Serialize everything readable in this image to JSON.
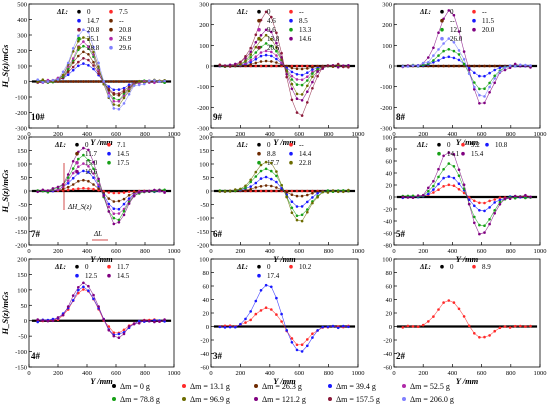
{
  "figure": {
    "ylabel": "H_S(z)/mGs",
    "xlabel": "Y /mm",
    "legend_title": "ΔL:",
    "dash_label": "--",
    "annotations": {
      "dh": "ΔH_S(z)",
      "dl": "ΔL"
    }
  },
  "colors": {
    "0": "#000000",
    "13.1": "#ff2a2a",
    "26.3": "#6e2a00",
    "39.4": "#1919ff",
    "52.5": "#b02aa8",
    "78.8": "#16a016",
    "96.9": "#6c6c00",
    "121.2": "#800080",
    "157.5": "#8b1a3a",
    "206.0": "#8080ff"
  },
  "mass_legend": {
    "row1": [
      {
        "label": "Δm = 0 g",
        "key": "0"
      },
      {
        "label": "Δm = 13.1 g",
        "key": "13.1"
      },
      {
        "label": "Δm = 26.3 g",
        "key": "26.3"
      },
      {
        "label": "Δm = 39.4 g",
        "key": "39.4"
      },
      {
        "label": "Δm = 52.5 g",
        "key": "52.5"
      }
    ],
    "row2": [
      {
        "label": "Δm = 78.8 g",
        "key": "78.8"
      },
      {
        "label": "Δm = 96.9 g",
        "key": "96.9"
      },
      {
        "label": "Δm = 121.2 g",
        "key": "121.2"
      },
      {
        "label": "Δm = 157.5 g",
        "key": "157.5"
      },
      {
        "label": "Δm = 206.0 g",
        "key": "206.0"
      }
    ]
  },
  "chart_data": [
    {
      "type": "line",
      "id": "10#",
      "ylim": [
        -300,
        500
      ],
      "yticks": [
        -300,
        -200,
        -100,
        0,
        100,
        200,
        300,
        400,
        500
      ],
      "xlim": [
        0,
        1000
      ],
      "xticks": [
        0,
        200,
        400,
        600,
        800,
        1000
      ],
      "legend_cols": 2,
      "series": [
        {
          "name": "0",
          "key": "0",
          "peak": 0,
          "trough": 0
        },
        {
          "name": "7.5",
          "key": "13.1",
          "dashed": true,
          "peak": 0,
          "trough": 0
        },
        {
          "name": "14.7",
          "key": "39.4",
          "peak": 115,
          "trough": -60
        },
        {
          "name": "--",
          "key": "26.3",
          "dashed": true,
          "peak": 0,
          "trough": 0
        },
        {
          "name": "20.8",
          "key": "157.5",
          "peak": 150,
          "trough": -80
        },
        {
          "name": "20.8",
          "key": "26.3",
          "peak": 185,
          "trough": -95
        },
        {
          "name": "25.1",
          "key": "78.8",
          "peak": 230,
          "trough": -125
        },
        {
          "name": "26.9",
          "key": "52.5",
          "peak": 250,
          "trough": -140
        },
        {
          "name": "28.8",
          "key": "96.9",
          "peak": 295,
          "trough": -165
        },
        {
          "name": "29.6",
          "key": "206.0",
          "peak": 340,
          "trough": -185
        }
      ]
    },
    {
      "type": "line",
      "id": "9#",
      "ylim": [
        -300,
        300
      ],
      "yticks": [
        -300,
        -200,
        -100,
        0,
        100,
        200,
        300
      ],
      "xlim": [
        0,
        1000
      ],
      "xticks": [
        0,
        200,
        400,
        600,
        800,
        1000
      ],
      "legend_cols": 2,
      "series": [
        {
          "name": "0",
          "key": "0",
          "peak": 0,
          "trough": 0
        },
        {
          "name": "--",
          "key": "13.1",
          "dashed": true,
          "peak": 0,
          "trough": 0
        },
        {
          "name": "4.6",
          "key": "26.3",
          "peak": 25,
          "trough": -15
        },
        {
          "name": "8.5",
          "key": "39.4",
          "peak": 55,
          "trough": -45
        },
        {
          "name": "9.6",
          "key": "52.5",
          "peak": 75,
          "trough": -70
        },
        {
          "name": "13.3",
          "key": "78.8",
          "peak": 110,
          "trough": -100
        },
        {
          "name": "13.8",
          "key": "96.9",
          "peak": 145,
          "trough": -140
        },
        {
          "name": "14.6",
          "key": "121.2",
          "peak": 175,
          "trough": -175
        },
        {
          "name": "20.6",
          "key": "157.5",
          "peak": 255,
          "trough": -245
        }
      ]
    },
    {
      "type": "line",
      "id": "8#",
      "ylim": [
        -300,
        300
      ],
      "yticks": [
        -300,
        -200,
        -100,
        0,
        100,
        200,
        300
      ],
      "xlim": [
        0,
        1000
      ],
      "xticks": [
        0,
        200,
        400,
        600,
        800,
        1000
      ],
      "legend_cols": 2,
      "series": [
        {
          "name": "0",
          "key": "0",
          "peak": 0,
          "trough": 0
        },
        {
          "name": "--",
          "key": "13.1",
          "dashed": true,
          "peak": 0,
          "trough": 0
        },
        {
          "name": "--",
          "key": "26.3",
          "dashed": true,
          "peak": 0,
          "trough": 0
        },
        {
          "name": "11.5",
          "key": "39.4",
          "peak": 45,
          "trough": -50
        },
        {
          "name": "12.1",
          "key": "78.8",
          "peak": 85,
          "trough": -120
        },
        {
          "name": "20.0",
          "key": "121.2",
          "peak": 265,
          "trough": -190
        },
        {
          "name": "26.0",
          "key": "206.0",
          "peak": 130,
          "trough": -150
        }
      ]
    },
    {
      "type": "line",
      "id": "7#",
      "ylim": [
        -200,
        200
      ],
      "yticks": [
        -200,
        -150,
        -100,
        -50,
        0,
        50,
        100,
        150,
        200
      ],
      "xlim": [
        0,
        1000
      ],
      "xticks": [
        0,
        200,
        400,
        600,
        800,
        1000
      ],
      "legend_cols": 2,
      "series": [
        {
          "name": "0",
          "key": "0",
          "peak": 0,
          "trough": 0
        },
        {
          "name": "7.1",
          "key": "13.1",
          "peak": 10,
          "trough": -8
        },
        {
          "name": "11.7",
          "key": "26.3",
          "peak": 40,
          "trough": -40
        },
        {
          "name": "14.5",
          "key": "39.4",
          "peak": 75,
          "trough": -70
        },
        {
          "name": "15.0",
          "key": "52.5",
          "peak": 100,
          "trough": -90
        },
        {
          "name": "17.5",
          "key": "78.8",
          "peak": 130,
          "trough": -110
        },
        {
          "name": "19.6",
          "key": "121.2",
          "peak": 165,
          "trough": -125
        }
      ]
    },
    {
      "type": "line",
      "id": "6#",
      "ylim": [
        -200,
        200
      ],
      "yticks": [
        -200,
        -150,
        -100,
        -50,
        0,
        50,
        100,
        150,
        200
      ],
      "xlim": [
        0,
        1000
      ],
      "xticks": [
        0,
        200,
        400,
        600,
        800,
        1000
      ],
      "legend_cols": 2,
      "series": [
        {
          "name": "0",
          "key": "0",
          "peak": 0,
          "trough": 0
        },
        {
          "name": "--",
          "key": "13.1",
          "dashed": true,
          "peak": 0,
          "trough": 0
        },
        {
          "name": "8.8",
          "key": "26.3",
          "peak": 20,
          "trough": -20
        },
        {
          "name": "14.4",
          "key": "39.4",
          "peak": 50,
          "trough": -60
        },
        {
          "name": "17.7",
          "key": "78.8",
          "peak": 85,
          "trough": -95
        },
        {
          "name": "22.8",
          "key": "96.9",
          "peak": 110,
          "trough": -115
        }
      ]
    },
    {
      "type": "line",
      "id": "5#",
      "ylim": [
        -80,
        100
      ],
      "yticks": [
        -80,
        -60,
        -40,
        -20,
        0,
        20,
        40,
        60,
        80,
        100
      ],
      "xlim": [
        0,
        1000
      ],
      "xticks": [
        0,
        200,
        400,
        600,
        800,
        1000
      ],
      "legend_cols": 3,
      "series": [
        {
          "name": "0",
          "key": "0",
          "peak": 0,
          "trough": 0
        },
        {
          "name": "9.2",
          "key": "13.1",
          "peak": 20,
          "trough": -10
        },
        {
          "name": "10.8",
          "key": "39.4",
          "peak": 35,
          "trough": -25
        },
        {
          "name": "14.1",
          "key": "78.8",
          "peak": 55,
          "trough": -50
        },
        {
          "name": "15.4",
          "key": "121.2",
          "peak": 75,
          "trough": -65
        }
      ]
    },
    {
      "type": "line",
      "id": "4#",
      "ylim": [
        -150,
        200
      ],
      "yticks": [
        -150,
        -100,
        -50,
        0,
        50,
        100,
        150,
        200
      ],
      "xlim": [
        0,
        1000
      ],
      "xticks": [
        0,
        200,
        400,
        600,
        800,
        1000
      ],
      "legend_cols": 2,
      "series": [
        {
          "name": "0",
          "key": "0",
          "peak": 0,
          "trough": 0
        },
        {
          "name": "11.7",
          "key": "13.1",
          "peak": 100,
          "trough": -40
        },
        {
          "name": "12.5",
          "key": "39.4",
          "peak": 110,
          "trough": -50
        },
        {
          "name": "14.5",
          "key": "121.2",
          "peak": 125,
          "trough": -55
        }
      ]
    },
    {
      "type": "line",
      "id": "3#",
      "ylim": [
        -60,
        100
      ],
      "yticks": [
        -60,
        -40,
        -20,
        0,
        20,
        40,
        60,
        80,
        100
      ],
      "xlim": [
        0,
        1000
      ],
      "xticks": [
        0,
        200,
        400,
        600,
        800,
        1000
      ],
      "legend_cols": 2,
      "series": [
        {
          "name": "0",
          "key": "0",
          "peak": 0,
          "trough": 0
        },
        {
          "name": "10.2",
          "key": "13.1",
          "peak": 28,
          "trough": -28
        },
        {
          "name": "17.4",
          "key": "39.4",
          "peak": 62,
          "trough": -38
        }
      ]
    },
    {
      "type": "line",
      "id": "2#",
      "ylim": [
        -60,
        100
      ],
      "yticks": [
        -60,
        -40,
        -20,
        0,
        20,
        40,
        60,
        80,
        100
      ],
      "xlim": [
        0,
        1000
      ],
      "xticks": [
        0,
        200,
        400,
        600,
        800,
        1000
      ],
      "legend_cols": 2,
      "series": [
        {
          "name": "0",
          "key": "0",
          "peak": 0,
          "trough": 0
        },
        {
          "name": "8.9",
          "key": "13.1",
          "peak": 40,
          "trough": -18
        }
      ]
    }
  ]
}
